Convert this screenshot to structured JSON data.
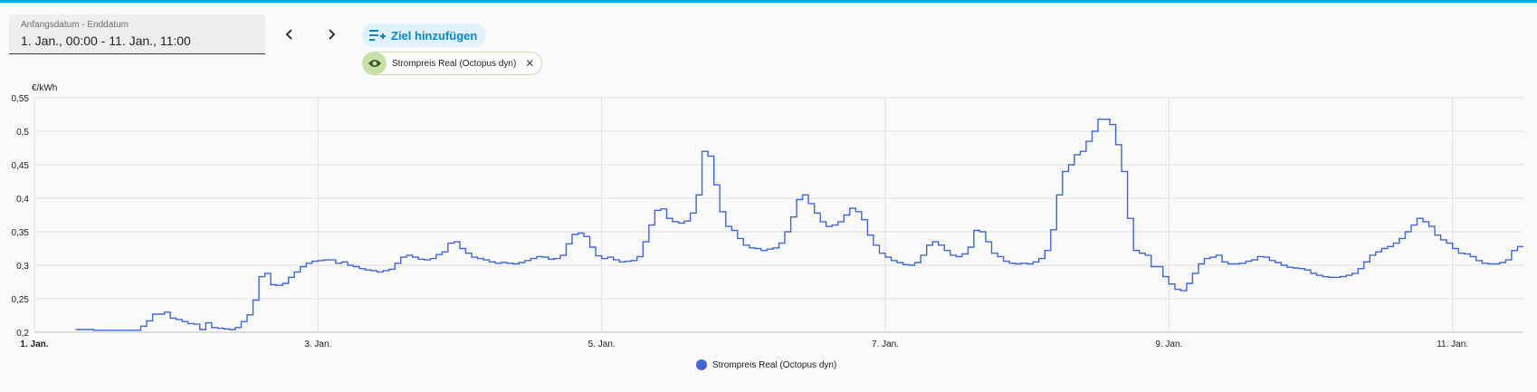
{
  "colors": {
    "accent": "#03a9f4",
    "series": "#3f66d9",
    "chip_eye_bg": "#c5e1a5",
    "add_bg": "#e1f2fb",
    "add_text": "#0288d1"
  },
  "date_picker": {
    "label": "Anfangsdatum - Enddatum",
    "value": "1. Jan., 00:00 - 11. Jan., 11:00"
  },
  "nav": {
    "prev_icon": "chevron-left-icon",
    "next_icon": "chevron-right-icon"
  },
  "add_target": {
    "label": "Ziel hinzufügen",
    "icon": "playlist-plus-icon"
  },
  "entity_chip": {
    "label": "Strompreis Real (Octopus dyn)",
    "icon": "eye-icon",
    "close_icon": "close-icon"
  },
  "legend": {
    "label": "Strompreis Real (Octopus dyn)"
  },
  "chart_data": {
    "type": "line",
    "step": true,
    "ylabel": "€/kWh",
    "ylim": [
      0.2,
      0.55
    ],
    "y_ticks": [
      "0,2",
      "0,25",
      "0,3",
      "0,35",
      "0,4",
      "0,45",
      "0,5",
      "0,55"
    ],
    "x_range_hours": [
      0,
      252
    ],
    "x_ticks": [
      {
        "hour": 0,
        "label": "1. Jan.",
        "bold": true
      },
      {
        "hour": 48,
        "label": "3. Jan."
      },
      {
        "hour": 96,
        "label": "5. Jan."
      },
      {
        "hour": 144,
        "label": "7. Jan."
      },
      {
        "hour": 192,
        "label": "9. Jan."
      },
      {
        "hour": 240,
        "label": "11. Jan."
      }
    ],
    "grid": true,
    "legend_position": "bottom",
    "series": [
      {
        "name": "Strompreis Real (Octopus dyn)",
        "x_unit": "hours since 1. Jan. 00:00",
        "x": [
          7,
          10,
          17,
          18,
          19,
          20,
          22,
          23,
          24,
          25,
          26,
          27,
          28,
          29,
          30,
          31,
          32,
          33,
          34,
          35,
          36,
          37,
          38,
          39,
          40,
          41,
          42,
          43,
          44,
          45,
          46,
          47,
          48,
          49,
          50,
          51,
          52,
          53,
          54,
          55,
          56,
          57,
          58,
          59,
          60,
          61,
          62,
          63,
          64,
          65,
          66,
          67,
          68,
          69,
          70,
          71,
          72,
          73,
          74,
          75,
          76,
          77,
          78,
          79,
          80,
          81,
          82,
          83,
          84,
          85,
          86,
          87,
          88,
          89,
          90,
          91,
          92,
          93,
          94,
          95,
          96,
          97,
          98,
          99,
          100,
          101,
          102,
          103,
          104,
          105,
          106,
          107,
          108,
          109,
          110,
          111,
          112,
          113,
          114,
          115,
          116,
          117,
          118,
          119,
          120,
          121,
          122,
          123,
          124,
          125,
          126,
          127,
          128,
          129,
          130,
          131,
          132,
          133,
          134,
          135,
          136,
          137,
          138,
          139,
          140,
          141,
          142,
          143,
          144,
          145,
          146,
          147,
          148,
          149,
          150,
          151,
          152,
          153,
          154,
          155,
          156,
          157,
          158,
          159,
          160,
          161,
          162,
          163,
          164,
          165,
          166,
          167,
          168,
          169,
          170,
          171,
          172,
          173,
          174,
          175,
          176,
          177,
          178,
          179,
          180,
          181,
          182,
          183,
          184,
          185,
          186,
          187,
          188,
          189,
          190,
          191,
          192,
          193,
          194,
          195,
          196,
          197,
          198,
          199,
          200,
          201,
          202,
          203,
          204,
          205,
          206,
          207,
          208,
          209,
          210,
          211,
          212,
          213,
          214,
          215,
          216,
          217,
          218,
          219,
          220,
          221,
          222,
          223,
          224,
          225,
          226,
          227,
          228,
          229,
          230,
          231,
          232,
          233,
          234,
          235,
          236,
          237,
          238,
          239,
          240,
          241,
          242,
          243,
          244,
          245,
          246,
          247,
          248,
          249,
          250,
          251
        ],
        "y": [
          0.204,
          0.203,
          0.203,
          0.209,
          0.217,
          0.227,
          0.23,
          0.221,
          0.219,
          0.216,
          0.213,
          0.212,
          0.204,
          0.214,
          0.207,
          0.206,
          0.205,
          0.204,
          0.207,
          0.216,
          0.226,
          0.248,
          0.283,
          0.288,
          0.271,
          0.27,
          0.273,
          0.282,
          0.29,
          0.298,
          0.303,
          0.306,
          0.307,
          0.308,
          0.308,
          0.303,
          0.305,
          0.3,
          0.298,
          0.295,
          0.293,
          0.292,
          0.29,
          0.292,
          0.294,
          0.303,
          0.312,
          0.315,
          0.312,
          0.309,
          0.308,
          0.31,
          0.316,
          0.32,
          0.333,
          0.335,
          0.325,
          0.318,
          0.312,
          0.31,
          0.308,
          0.305,
          0.303,
          0.304,
          0.303,
          0.302,
          0.304,
          0.307,
          0.31,
          0.313,
          0.312,
          0.309,
          0.31,
          0.315,
          0.332,
          0.346,
          0.348,
          0.343,
          0.327,
          0.314,
          0.31,
          0.312,
          0.308,
          0.305,
          0.306,
          0.307,
          0.313,
          0.335,
          0.36,
          0.382,
          0.384,
          0.37,
          0.365,
          0.363,
          0.366,
          0.378,
          0.405,
          0.47,
          0.463,
          0.42,
          0.38,
          0.358,
          0.352,
          0.34,
          0.33,
          0.326,
          0.325,
          0.322,
          0.324,
          0.326,
          0.333,
          0.35,
          0.372,
          0.398,
          0.405,
          0.392,
          0.378,
          0.365,
          0.358,
          0.36,
          0.365,
          0.375,
          0.385,
          0.38,
          0.368,
          0.345,
          0.33,
          0.318,
          0.312,
          0.307,
          0.304,
          0.301,
          0.3,
          0.304,
          0.315,
          0.33,
          0.335,
          0.33,
          0.322,
          0.315,
          0.313,
          0.317,
          0.327,
          0.352,
          0.35,
          0.335,
          0.318,
          0.313,
          0.306,
          0.303,
          0.302,
          0.303,
          0.302,
          0.305,
          0.31,
          0.322,
          0.353,
          0.405,
          0.44,
          0.45,
          0.465,
          0.47,
          0.485,
          0.5,
          0.518,
          0.518,
          0.51,
          0.48,
          0.44,
          0.37,
          0.322,
          0.318,
          0.315,
          0.298,
          0.298,
          0.283,
          0.272,
          0.264,
          0.262,
          0.273,
          0.288,
          0.302,
          0.31,
          0.312,
          0.315,
          0.305,
          0.302,
          0.302,
          0.303,
          0.306,
          0.308,
          0.313,
          0.312,
          0.307,
          0.304,
          0.3,
          0.297,
          0.296,
          0.295,
          0.293,
          0.288,
          0.285,
          0.283,
          0.282,
          0.282,
          0.283,
          0.285,
          0.288,
          0.295,
          0.305,
          0.315,
          0.32,
          0.325,
          0.328,
          0.333,
          0.34,
          0.35,
          0.36,
          0.37,
          0.365,
          0.358,
          0.345,
          0.338,
          0.333,
          0.325,
          0.318,
          0.317,
          0.313,
          0.307,
          0.303,
          0.302,
          0.302,
          0.304,
          0.308,
          0.322,
          0.328
        ]
      }
    ]
  }
}
